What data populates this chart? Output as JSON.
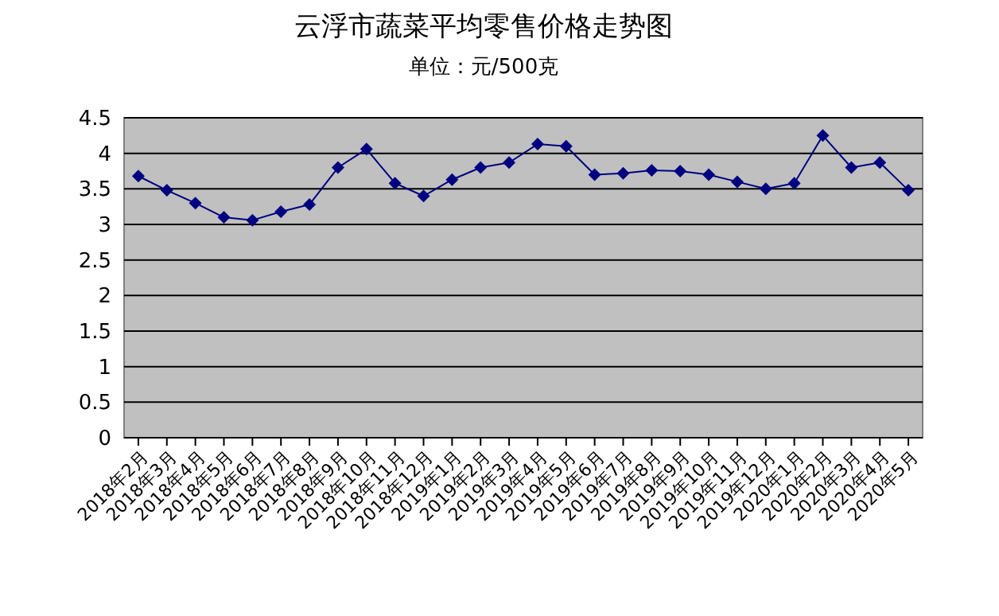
{
  "chart_data": {
    "type": "line",
    "title": "云浮市蔬菜平均零售价格走势图",
    "subtitle": "单位：元/500克",
    "categories": [
      "2018年2月",
      "2018年3月",
      "2018年4月",
      "2018年5月",
      "2018年6月",
      "2018年7月",
      "2018年8月",
      "2018年9月",
      "2018年10月",
      "2018年11月",
      "2018年12月",
      "2019年1月",
      "2019年2月",
      "2019年3月",
      "2019年4月",
      "2019年5月",
      "2019年6月",
      "2019年7月",
      "2019年8月",
      "2019年9月",
      "2019年10月",
      "2019年11月",
      "2019年12月",
      "2020年1月",
      "2020年2月",
      "2020年3月",
      "2020年4月",
      "2020年5月"
    ],
    "series": [
      {
        "color": "#000080",
        "values": [
          3.68,
          3.48,
          3.3,
          3.1,
          3.06,
          3.18,
          3.28,
          3.8,
          4.06,
          3.58,
          3.4,
          3.63,
          3.8,
          3.87,
          4.13,
          4.1,
          3.7,
          3.72,
          3.76,
          3.75,
          3.7,
          3.6,
          3.5,
          3.58,
          4.25,
          3.8,
          3.87,
          3.48
        ]
      }
    ],
    "ylim": [
      0,
      4.5
    ],
    "yticks": [
      0,
      0.5,
      1,
      1.5,
      2,
      2.5,
      3,
      3.5,
      4,
      4.5
    ],
    "grid": "y",
    "marker": "diamond",
    "line_style": "solid"
  }
}
